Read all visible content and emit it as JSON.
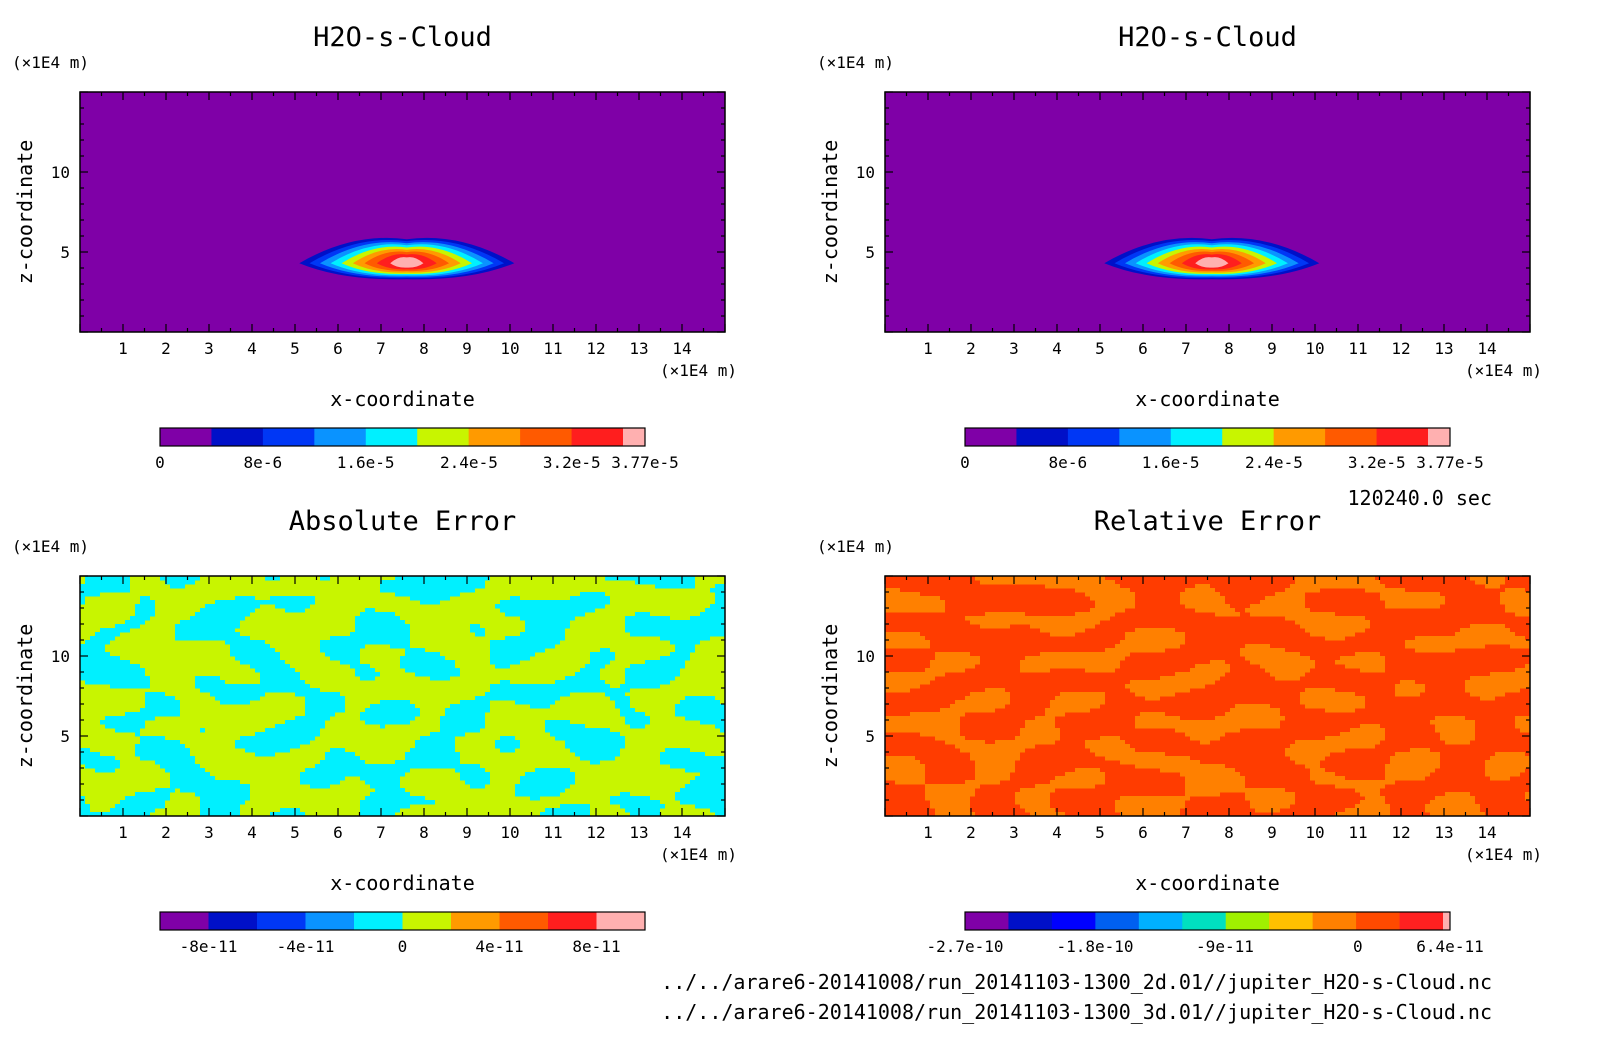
{
  "chart_data": [
    {
      "type": "heatmap",
      "title": "H2O-s-Cloud",
      "xlabel": "x-coordinate",
      "ylabel": "z-coordinate",
      "xunit": "(×1E4 m)",
      "yunit": "(×1E4 m)",
      "xlim": [
        0,
        15
      ],
      "ylim": [
        0,
        15
      ],
      "xticks": [
        "1",
        "2",
        "3",
        "4",
        "5",
        "6",
        "7",
        "8",
        "9",
        "10",
        "11",
        "12",
        "13",
        "14"
      ],
      "yticks": [
        "5",
        "10"
      ],
      "field": {
        "kind": "blob",
        "background_level": 0,
        "center_x": 7.6,
        "center_z": 4.3,
        "half_width_x": 2.5,
        "peak_level": 9
      },
      "colorbar": {
        "colors": [
          "#7f00a7",
          "#0010c8",
          "#0037f5",
          "#0a93ff",
          "#00f0ff",
          "#c8f500",
          "#ff9a00",
          "#ff5a00",
          "#ff1e1e",
          "#ffb0b0"
        ],
        "ticks": [
          {
            "label": "0",
            "pos": 0
          },
          {
            "label": "8e-6",
            "pos": 0.212
          },
          {
            "label": "1.6e-5",
            "pos": 0.424
          },
          {
            "label": "2.4e-5",
            "pos": 0.637
          },
          {
            "label": "3.2e-5",
            "pos": 0.849
          },
          {
            "label": "3.77e-5",
            "pos": 1
          }
        ]
      },
      "value_range": [
        0,
        3.77e-05
      ]
    },
    {
      "type": "heatmap",
      "title": "H2O-s-Cloud",
      "xlabel": "x-coordinate",
      "ylabel": "z-coordinate",
      "xunit": "(×1E4 m)",
      "yunit": "(×1E4 m)",
      "xlim": [
        0,
        15
      ],
      "ylim": [
        0,
        15
      ],
      "xticks": [
        "1",
        "2",
        "3",
        "4",
        "5",
        "6",
        "7",
        "8",
        "9",
        "10",
        "11",
        "12",
        "13",
        "14"
      ],
      "yticks": [
        "5",
        "10"
      ],
      "field": {
        "kind": "blob",
        "background_level": 0,
        "center_x": 7.6,
        "center_z": 4.3,
        "half_width_x": 2.5,
        "peak_level": 9
      },
      "colorbar": {
        "colors": [
          "#7f00a7",
          "#0010c8",
          "#0037f5",
          "#0a93ff",
          "#00f0ff",
          "#c8f500",
          "#ff9a00",
          "#ff5a00",
          "#ff1e1e",
          "#ffb0b0"
        ],
        "ticks": [
          {
            "label": "0",
            "pos": 0
          },
          {
            "label": "8e-6",
            "pos": 0.212
          },
          {
            "label": "1.6e-5",
            "pos": 0.424
          },
          {
            "label": "2.4e-5",
            "pos": 0.637
          },
          {
            "label": "3.2e-5",
            "pos": 0.849
          },
          {
            "label": "3.77e-5",
            "pos": 1
          }
        ]
      },
      "value_range": [
        0,
        3.77e-05
      ]
    },
    {
      "type": "heatmap",
      "title": "Absolute Error",
      "xlabel": "x-coordinate",
      "ylabel": "z-coordinate",
      "xunit": "(×1E4 m)",
      "yunit": "(×1E4 m)",
      "xlim": [
        0,
        15
      ],
      "ylim": [
        0,
        15
      ],
      "xticks": [
        "1",
        "2",
        "3",
        "4",
        "5",
        "6",
        "7",
        "8",
        "9",
        "10",
        "11",
        "12",
        "13",
        "14"
      ],
      "yticks": [
        "5",
        "10"
      ],
      "field": {
        "kind": "noise",
        "background": "#c8f500",
        "patch": "#00f0ff",
        "seed": 7
      },
      "colorbar": {
        "colors": [
          "#7f00a7",
          "#0010c8",
          "#0037f5",
          "#0a93ff",
          "#00f0ff",
          "#c8f500",
          "#ff9a00",
          "#ff5a00",
          "#ff1e1e",
          "#ffb0b0"
        ],
        "ticks": [
          {
            "label": "-8e-11",
            "pos": 0.1
          },
          {
            "label": "-4e-11",
            "pos": 0.3
          },
          {
            "label": "0",
            "pos": 0.5
          },
          {
            "label": "4e-11",
            "pos": 0.7
          },
          {
            "label": "8e-11",
            "pos": 0.9
          }
        ]
      },
      "value_range": [
        -1e-10,
        1e-10
      ]
    },
    {
      "type": "heatmap",
      "title": "Relative Error",
      "xlabel": "x-coordinate",
      "ylabel": "z-coordinate",
      "xunit": "(×1E4 m)",
      "yunit": "(×1E4 m)",
      "xlim": [
        0,
        15
      ],
      "ylim": [
        0,
        15
      ],
      "xticks": [
        "1",
        "2",
        "3",
        "4",
        "5",
        "6",
        "7",
        "8",
        "9",
        "10",
        "11",
        "12",
        "13",
        "14"
      ],
      "yticks": [
        "5",
        "10"
      ],
      "field": {
        "kind": "noise",
        "background": "#ff3c00",
        "patch": "#ff8000",
        "seed": 19
      },
      "colorbar": {
        "colors": [
          "#7f00a7",
          "#0010c8",
          "#0000ff",
          "#0060f0",
          "#00b0ff",
          "#00e0c0",
          "#a0f000",
          "#ffc000",
          "#ff8000",
          "#ff4a00",
          "#ff2020",
          "#ffb0b0"
        ],
        "ticks": [
          {
            "label": "-2.7e-10",
            "pos": 0
          },
          {
            "label": "-1.8e-10",
            "pos": 0.268
          },
          {
            "label": "-9e-11",
            "pos": 0.536
          },
          {
            "label": "0",
            "pos": 0.81
          },
          {
            "label": "6.4e-11",
            "pos": 1
          }
        ]
      },
      "value_range": [
        -2.7e-10,
        6.4e-11
      ]
    }
  ],
  "time_label": "120240.0 sec",
  "file_paths": [
    "../../arare6-20141008/run_20141103-1300_2d.01//jupiter_H2O-s-Cloud.nc",
    "../../arare6-20141008/run_20141103-1300_3d.01//jupiter_H2O-s-Cloud.nc"
  ]
}
